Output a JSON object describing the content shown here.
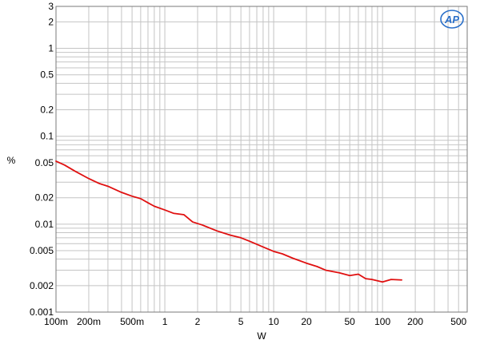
{
  "chart_data": {
    "type": "line",
    "title": "",
    "xlabel": "W",
    "ylabel": "%",
    "x_scale": "log",
    "y_scale": "log",
    "xlim": [
      0.1,
      600
    ],
    "ylim": [
      0.001,
      3
    ],
    "grid": true,
    "x_ticks": [
      {
        "value": 0.1,
        "label": "100m"
      },
      {
        "value": 0.2,
        "label": "200m"
      },
      {
        "value": 0.5,
        "label": "500m"
      },
      {
        "value": 1,
        "label": "1"
      },
      {
        "value": 2,
        "label": "2"
      },
      {
        "value": 5,
        "label": "5"
      },
      {
        "value": 10,
        "label": "10"
      },
      {
        "value": 20,
        "label": "20"
      },
      {
        "value": 50,
        "label": "50"
      },
      {
        "value": 100,
        "label": "100"
      },
      {
        "value": 200,
        "label": "200"
      },
      {
        "value": 500,
        "label": "500"
      }
    ],
    "y_ticks": [
      {
        "value": 3,
        "label": "3"
      },
      {
        "value": 2,
        "label": "2"
      },
      {
        "value": 1,
        "label": "1"
      },
      {
        "value": 0.5,
        "label": "0.5"
      },
      {
        "value": 0.2,
        "label": "0.2"
      },
      {
        "value": 0.1,
        "label": "0.1"
      },
      {
        "value": 0.05,
        "label": "0.05"
      },
      {
        "value": 0.02,
        "label": "0.02"
      },
      {
        "value": 0.01,
        "label": "0.01"
      },
      {
        "value": 0.005,
        "label": "0.005"
      },
      {
        "value": 0.002,
        "label": "0.002"
      },
      {
        "value": 0.001,
        "label": "0.001"
      }
    ],
    "series": [
      {
        "color": "#e01010",
        "x": [
          0.1,
          0.12,
          0.15,
          0.2,
          0.25,
          0.3,
          0.4,
          0.5,
          0.6,
          0.7,
          0.8,
          1.0,
          1.2,
          1.5,
          1.8,
          2.2,
          3.0,
          4.0,
          5.0,
          6.0,
          7.0,
          8.0,
          10,
          12,
          15,
          20,
          25,
          30,
          40,
          50,
          60,
          70,
          80,
          100,
          120,
          150
        ],
        "y": [
          0.052,
          0.047,
          0.04,
          0.033,
          0.029,
          0.027,
          0.023,
          0.0208,
          0.0195,
          0.0175,
          0.016,
          0.0145,
          0.0133,
          0.0128,
          0.0106,
          0.0098,
          0.0084,
          0.0075,
          0.007,
          0.0064,
          0.0059,
          0.0055,
          0.0049,
          0.0046,
          0.0041,
          0.0036,
          0.0033,
          0.003,
          0.0028,
          0.0026,
          0.0027,
          0.0024,
          0.00235,
          0.0022,
          0.00235,
          0.00232
        ]
      }
    ]
  },
  "logo": {
    "text": "AP",
    "color": "#2a6fc9"
  }
}
